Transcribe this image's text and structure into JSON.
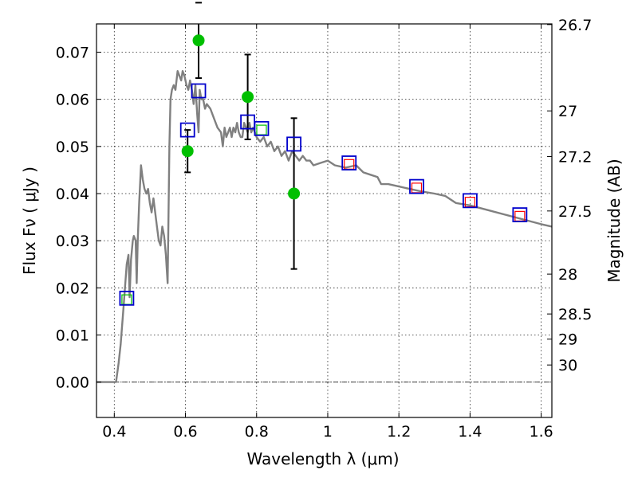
{
  "chart_data": {
    "type": "scatter",
    "title": "",
    "xlabel": "Wavelength  λ (μm)",
    "ylabel": "Flux  Fν  ( μJy )",
    "ylabel_right": "Magnitude (AB)",
    "xlim": [
      0.35,
      1.63
    ],
    "ylim": [
      -0.0075,
      0.076
    ],
    "grid": true,
    "x_ticks": [
      0.4,
      0.6,
      0.8,
      1.0,
      1.2,
      1.4,
      1.6
    ],
    "x_tick_labels": [
      "0.4",
      "0.6",
      "0.8",
      "1",
      "1.2",
      "1.4",
      "1.6"
    ],
    "y_ticks": [
      0.0,
      0.01,
      0.02,
      0.03,
      0.04,
      0.05,
      0.06,
      0.07
    ],
    "y_tick_labels": [
      "0.00",
      "0.01",
      "0.02",
      "0.03",
      "0.04",
      "0.05",
      "0.06",
      "0.07"
    ],
    "mag_ticks": [
      26.7,
      27,
      27.2,
      27.5,
      28,
      28.5,
      29,
      30
    ],
    "mag_tick_labels": [
      "26.7",
      "27",
      "27.2",
      "27.5",
      "28",
      "28.5",
      "29",
      "30"
    ],
    "colors": {
      "model": "#808080",
      "observed": "#00bf00",
      "errorbar": "#000000",
      "model_phot": "#0000cc",
      "nir_phot": "#ff0000",
      "zero_line": "#000000"
    },
    "series": [
      {
        "name": "model-spectrum",
        "kind": "line",
        "x": [
          0.35,
          0.405,
          0.412,
          0.418,
          0.425,
          0.43,
          0.435,
          0.44,
          0.443,
          0.447,
          0.452,
          0.455,
          0.46,
          0.463,
          0.466,
          0.47,
          0.475,
          0.48,
          0.485,
          0.49,
          0.495,
          0.5,
          0.505,
          0.51,
          0.515,
          0.52,
          0.525,
          0.53,
          0.535,
          0.54,
          0.545,
          0.55,
          0.555,
          0.558,
          0.562,
          0.567,
          0.572,
          0.578,
          0.583,
          0.588,
          0.592,
          0.597,
          0.603,
          0.608,
          0.613,
          0.618,
          0.623,
          0.628,
          0.633,
          0.637,
          0.64,
          0.645,
          0.65,
          0.655,
          0.66,
          0.67,
          0.68,
          0.69,
          0.7,
          0.705,
          0.71,
          0.715,
          0.72,
          0.725,
          0.73,
          0.735,
          0.74,
          0.745,
          0.75,
          0.755,
          0.76,
          0.765,
          0.77,
          0.775,
          0.78,
          0.785,
          0.79,
          0.8,
          0.81,
          0.82,
          0.83,
          0.84,
          0.85,
          0.86,
          0.87,
          0.88,
          0.89,
          0.9,
          0.91,
          0.92,
          0.93,
          0.94,
          0.95,
          0.96,
          0.98,
          1.0,
          1.02,
          1.05,
          1.08,
          1.1,
          1.12,
          1.14,
          1.15,
          1.17,
          1.2,
          1.23,
          1.26,
          1.3,
          1.33,
          1.36,
          1.4,
          1.45,
          1.5,
          1.55,
          1.6,
          1.63
        ],
        "y": [
          0.0,
          0.0,
          0.004,
          0.008,
          0.015,
          0.02,
          0.025,
          0.027,
          0.018,
          0.026,
          0.03,
          0.031,
          0.03,
          0.021,
          0.03,
          0.038,
          0.046,
          0.043,
          0.041,
          0.04,
          0.041,
          0.038,
          0.036,
          0.039,
          0.036,
          0.033,
          0.03,
          0.029,
          0.033,
          0.031,
          0.027,
          0.021,
          0.05,
          0.06,
          0.062,
          0.063,
          0.062,
          0.066,
          0.065,
          0.064,
          0.066,
          0.065,
          0.063,
          0.062,
          0.064,
          0.062,
          0.059,
          0.063,
          0.057,
          0.053,
          0.062,
          0.06,
          0.06,
          0.058,
          0.059,
          0.058,
          0.056,
          0.054,
          0.053,
          0.05,
          0.054,
          0.052,
          0.053,
          0.054,
          0.052,
          0.054,
          0.053,
          0.055,
          0.053,
          0.052,
          0.052,
          0.055,
          0.054,
          0.053,
          0.055,
          0.053,
          0.054,
          0.052,
          0.051,
          0.052,
          0.05,
          0.051,
          0.049,
          0.05,
          0.048,
          0.049,
          0.047,
          0.049,
          0.048,
          0.047,
          0.048,
          0.047,
          0.047,
          0.046,
          0.0465,
          0.047,
          0.046,
          0.0455,
          0.046,
          0.0445,
          0.044,
          0.0435,
          0.042,
          0.042,
          0.0415,
          0.041,
          0.0405,
          0.04,
          0.0395,
          0.038,
          0.0375,
          0.0365,
          0.0355,
          0.0345,
          0.0335,
          0.033
        ]
      },
      {
        "name": "observed-photometry",
        "kind": "points-with-errorbars",
        "x": [
          0.606,
          0.637,
          0.775,
          0.905
        ],
        "y": [
          0.049,
          0.0725,
          0.0605,
          0.04
        ],
        "yerr_low": [
          0.0445,
          0.0645,
          0.0515,
          0.024
        ],
        "yerr_high": [
          0.0535,
          0.0805,
          0.0695,
          0.056
        ]
      },
      {
        "name": "model-photometry",
        "kind": "open-squares",
        "x": [
          0.435,
          0.606,
          0.637,
          0.775,
          0.814,
          0.905,
          1.06,
          1.25,
          1.4,
          1.54
        ],
        "y": [
          0.0178,
          0.0535,
          0.0618,
          0.0552,
          0.0538,
          0.0505,
          0.0465,
          0.0415,
          0.0385,
          0.0355
        ]
      },
      {
        "name": "near-ir-photometry",
        "kind": "open-squares-small",
        "x": [
          1.06,
          1.25,
          1.4,
          1.54
        ],
        "y": [
          0.0462,
          0.0412,
          0.0382,
          0.0352
        ]
      },
      {
        "name": "green-inner-squares",
        "kind": "open-squares-small",
        "x": [
          0.435,
          0.814
        ],
        "y": [
          0.0175,
          0.0535
        ]
      }
    ]
  }
}
